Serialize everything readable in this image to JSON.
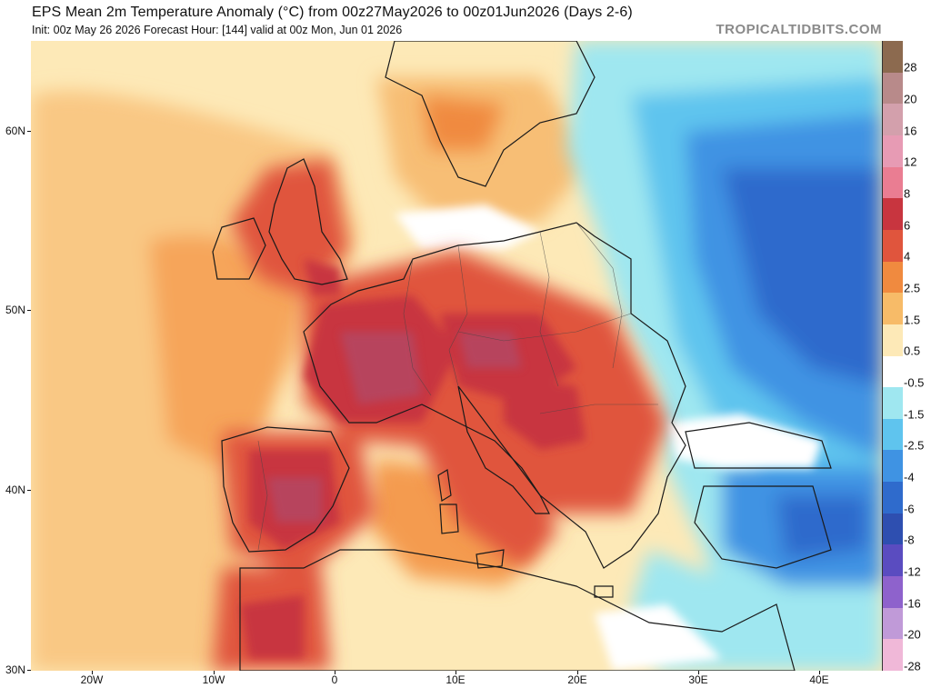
{
  "header": {
    "title": "EPS Mean 2m Temperature Anomaly (°C) from 00z27May2026 to 00z01Jun2026 (Days 2-6)",
    "subtitle": "Init: 00z May 26 2026   Forecast Hour: [144]   valid at 00z Mon, Jun 01 2026",
    "brand": "TROPICALTIDBITS.COM"
  },
  "axes": {
    "lat_labels": [
      "60N",
      "50N",
      "40N",
      "30N"
    ],
    "lon_labels": [
      "20W",
      "10W",
      "0",
      "10E",
      "20E",
      "30E",
      "40E"
    ]
  },
  "colorbar": {
    "labels": [
      "28",
      "20",
      "16",
      "12",
      "8",
      "6",
      "4",
      "2.5",
      "1.5",
      "0.5",
      "-0.5",
      "-1.5",
      "-2.5",
      "-4",
      "-6",
      "-8",
      "-12",
      "-16",
      "-20",
      "-28"
    ],
    "colors": [
      "#8c6a4f",
      "#b88a8a",
      "#d3a0ac",
      "#e79bb4",
      "#ea7d92",
      "#c8353f",
      "#e0553d",
      "#f08a3f",
      "#f7bb68",
      "#fde9b7",
      "#ffffff",
      "#9fe7f0",
      "#5fc4ee",
      "#3f93e3",
      "#2f6bcc",
      "#2e4fb0",
      "#5a4cc0",
      "#8e62cc",
      "#c09ad8",
      "#f0b8d8"
    ]
  },
  "colors": {
    "hot": "#c8353f",
    "warm": "#f08a3f",
    "cold": "#2f6bcc",
    "neutral": "#ffffff"
  }
}
